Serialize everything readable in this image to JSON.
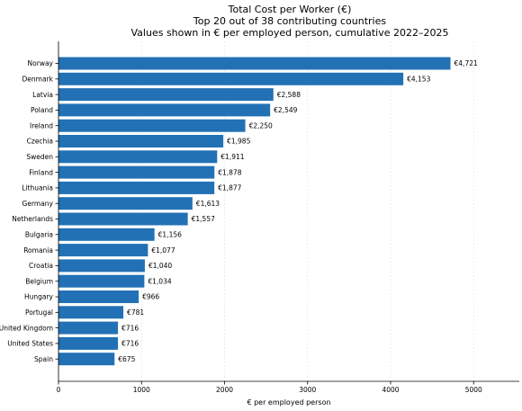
{
  "chart_data": {
    "type": "bar",
    "orientation": "horizontal",
    "title_lines": [
      "Total Cost per Worker (€)",
      "Top 20 out of 38 contributing countries",
      "Values shown in € per employed person, cumulative 2022–2025"
    ],
    "xlabel": "€ per employed person",
    "ylabel": "",
    "xlim": [
      0,
      5550
    ],
    "xticks": [
      0,
      1000,
      2000,
      3000,
      4000,
      5000
    ],
    "grid": "vertical",
    "bar_color": "#2271b5",
    "categories": [
      "Norway",
      "Denmark",
      "Latvia",
      "Poland",
      "Ireland",
      "Czechia",
      "Sweden",
      "Finland",
      "Lithuania",
      "Germany",
      "Netherlands",
      "Bulgaria",
      "Romania",
      "Croatia",
      "Belgium",
      "Hungary",
      "Portugal",
      "United Kingdom",
      "United States",
      "Spain"
    ],
    "values": [
      4721,
      4153,
      2588,
      2549,
      2250,
      1985,
      1911,
      1878,
      1877,
      1613,
      1557,
      1156,
      1077,
      1040,
      1034,
      966,
      781,
      716,
      716,
      675
    ],
    "data_labels": [
      "€4,721",
      "€4,153",
      "€2,588",
      "€2,549",
      "€2,250",
      "€1,985",
      "€1,911",
      "€1,878",
      "€1,877",
      "€1,613",
      "€1,557",
      "€1,156",
      "€1,077",
      "€1,040",
      "€1,034",
      "€966",
      "€781",
      "€716",
      "€716",
      "€675"
    ]
  }
}
